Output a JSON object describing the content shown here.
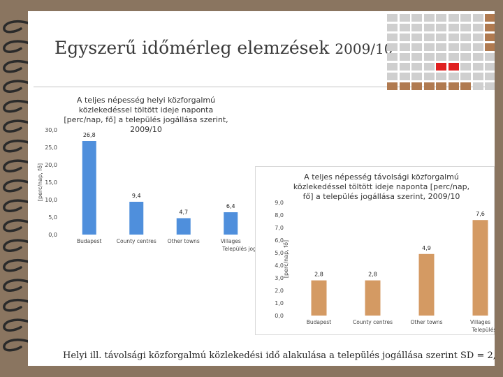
{
  "title": {
    "main": "Egyszerű időmérleg elemzések",
    "year": "2009/10"
  },
  "colors": {
    "background": "#8a7560",
    "accent_red": "#e02020",
    "grid_grey": "#cfcfcf",
    "grid_brown": "#b07a50",
    "bar_blue": "#4f8fdc",
    "bar_orange": "#d49a63"
  },
  "caption": {
    "text": "Helyi ill. távolsági közforgalmú közlekedési idő alakulása a település jogállása szerint SD = 2,3"
  },
  "chart_data": [
    {
      "type": "bar",
      "title": "A teljes népesség helyi közforgalmú közlekedéssel töltött ideje naponta [perc/nap, fő] a település jogállása szerint, 2009/10",
      "ylabel": "[perc/nap, fő]",
      "xlabel": "Település jogállása",
      "categories": [
        "Budapest",
        "County centres",
        "Other towns",
        "Villages"
      ],
      "values": [
        26.8,
        9.4,
        4.7,
        6.4
      ],
      "value_labels": [
        "26,8",
        "9,4",
        "4,7",
        "6,4"
      ],
      "ylim": [
        0,
        30
      ],
      "yticks": [
        "0,0",
        "5,0",
        "10,0",
        "15,0",
        "20,0",
        "25,0",
        "30,0"
      ],
      "color": "#4f8fdc",
      "grid": false
    },
    {
      "type": "bar",
      "title": "A teljes népesség távolsági közforgalmú közlekedéssel töltött ideje naponta [perc/nap, fő] a település jogállása szerint, 2009/10",
      "ylabel": "[perc/nap, fő]",
      "xlabel": "Település jogállása",
      "categories": [
        "Budapest",
        "County centres",
        "Other towns",
        "Villages"
      ],
      "values": [
        2.8,
        2.8,
        4.9,
        7.6
      ],
      "value_labels": [
        "2,8",
        "2,8",
        "4,9",
        "7,6"
      ],
      "ylim": [
        0,
        9
      ],
      "yticks": [
        "0,0",
        "1,0",
        "2,0",
        "3,0",
        "4,0",
        "5,0",
        "6,0",
        "7,0",
        "8,0",
        "9,0"
      ],
      "color": "#d49a63",
      "grid": false
    }
  ]
}
